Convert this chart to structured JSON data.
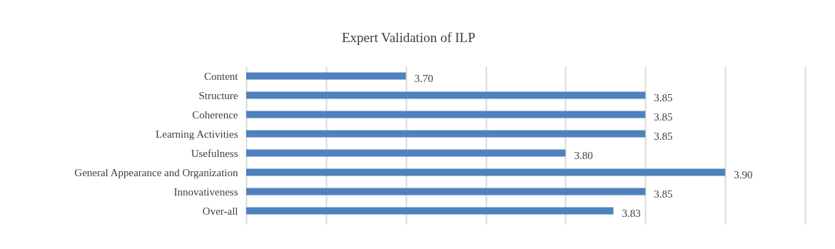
{
  "chart_data": {
    "type": "bar",
    "orientation": "horizontal",
    "title": "Expert Validation of ILP",
    "categories": [
      "Content",
      "Structure",
      "Coherence",
      "Learning Activities",
      "Usefulness",
      "General Appearance and Organization",
      "Innovativeness",
      "Over-all"
    ],
    "values": [
      3.7,
      3.85,
      3.85,
      3.85,
      3.8,
      3.9,
      3.85,
      3.83
    ],
    "value_labels": [
      "3.70",
      "3.85",
      "3.85",
      "3.85",
      "3.80",
      "3.90",
      "3.85",
      "3.83"
    ],
    "color": "#4f81bd",
    "xlim": [
      3.6,
      3.95
    ],
    "xticks": [
      {
        "value": 3.6,
        "label": null
      },
      {
        "value": 3.65,
        "label": null
      },
      {
        "value": 3.7,
        "label": null
      },
      {
        "value": 3.75,
        "label": null
      },
      {
        "value": 3.8,
        "label": null
      },
      {
        "value": 3.85,
        "label": null
      },
      {
        "value": 3.9,
        "label": null
      },
      {
        "value": 3.95,
        "label": null
      }
    ],
    "grid": "x",
    "tick_labels": "y"
  }
}
